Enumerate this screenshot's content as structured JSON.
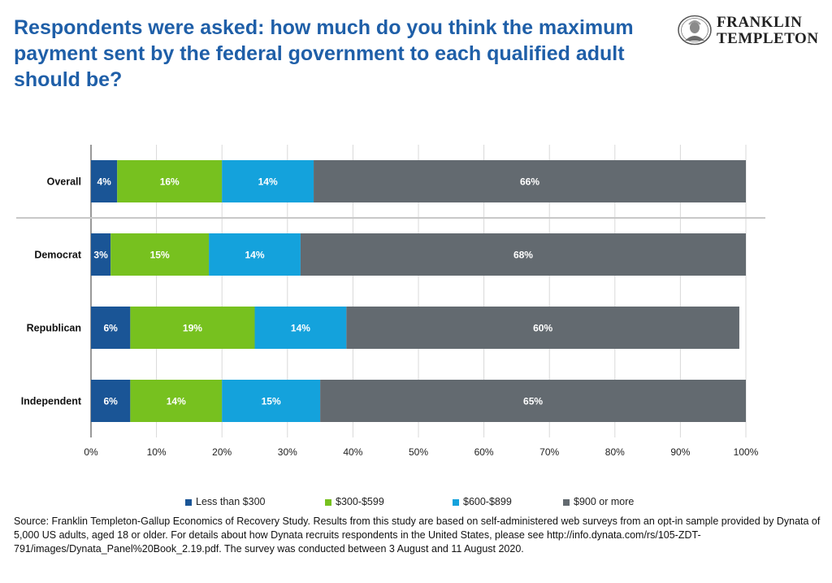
{
  "title": "Respondents were asked: how much do you think the maximum payment sent by the federal government to each qualified adult should be?",
  "logo": {
    "line1": "FRANKLIN",
    "line2": "TEMPLETON"
  },
  "chart_data": {
    "type": "bar",
    "orientation": "horizontal",
    "stacked": true,
    "categories": [
      "Overall",
      "Democrat",
      "Republican",
      "Independent"
    ],
    "series": [
      {
        "name": "Less than $300",
        "color": "#1a5596",
        "values": [
          4,
          3,
          6,
          6
        ]
      },
      {
        "name": "$300-$599",
        "color": "#77c11f",
        "values": [
          16,
          15,
          19,
          14
        ]
      },
      {
        "name": "$600-$899",
        "color": "#14a2dc",
        "values": [
          14,
          14,
          14,
          15
        ]
      },
      {
        "name": "$900 or more",
        "color": "#636a70",
        "values": [
          66,
          68,
          60,
          65
        ]
      }
    ],
    "data_labels": [
      [
        "4%",
        "16%",
        "14%",
        "66%"
      ],
      [
        "3%",
        "15%",
        "14%",
        "68%"
      ],
      [
        "6%",
        "19%",
        "14%",
        "60%"
      ],
      [
        "6%",
        "14%",
        "15%",
        "65%"
      ]
    ],
    "xlim": [
      0,
      100
    ],
    "xticks": [
      "0%",
      "10%",
      "20%",
      "30%",
      "40%",
      "50%",
      "60%",
      "70%",
      "80%",
      "90%",
      "100%"
    ],
    "grid": true,
    "legend_position": "bottom",
    "separator_after": "Overall"
  },
  "source": "Source: Franklin Templeton-Gallup Economics of Recovery Study. Results from this study are based on self-administered web surveys from an opt-in sample provided by Dynata of 5,000 US adults, aged 18 or older. For details about how Dynata recruits respondents in the United States, please see http://info.dynata.com/rs/105-ZDT-791/images/Dynata_Panel%20Book_2.19.pdf. The survey was conducted between 3 August and 11 August 2020."
}
